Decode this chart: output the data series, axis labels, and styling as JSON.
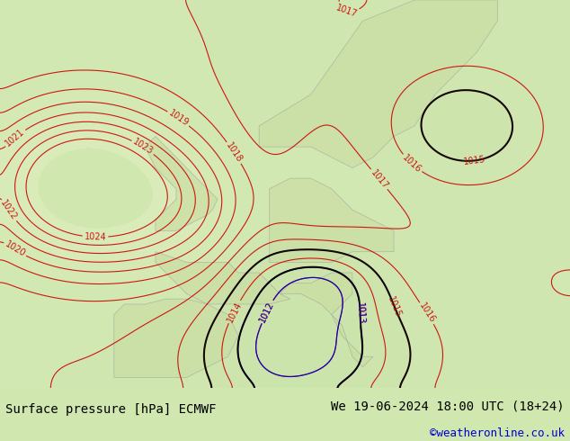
{
  "title_left": "Surface pressure [hPa] ECMWF",
  "title_right": "We 19-06-2024 18:00 UTC (18+24)",
  "credit": "©weatheronline.co.uk",
  "bg_color": "#d0e8b0",
  "land_color": "#e8f0d0",
  "sea_color": "#c8dfa8",
  "contour_color_red": "#cc0000",
  "contour_color_blue": "#0000cc",
  "contour_color_black": "#000000",
  "label_color_red": "#cc0000",
  "label_color_blue": "#0000cc",
  "bottom_bar_color": "#ffffff",
  "bottom_text_color": "#000000",
  "credit_color": "#0000cc",
  "figsize": [
    6.34,
    4.9
  ],
  "dpi": 100
}
